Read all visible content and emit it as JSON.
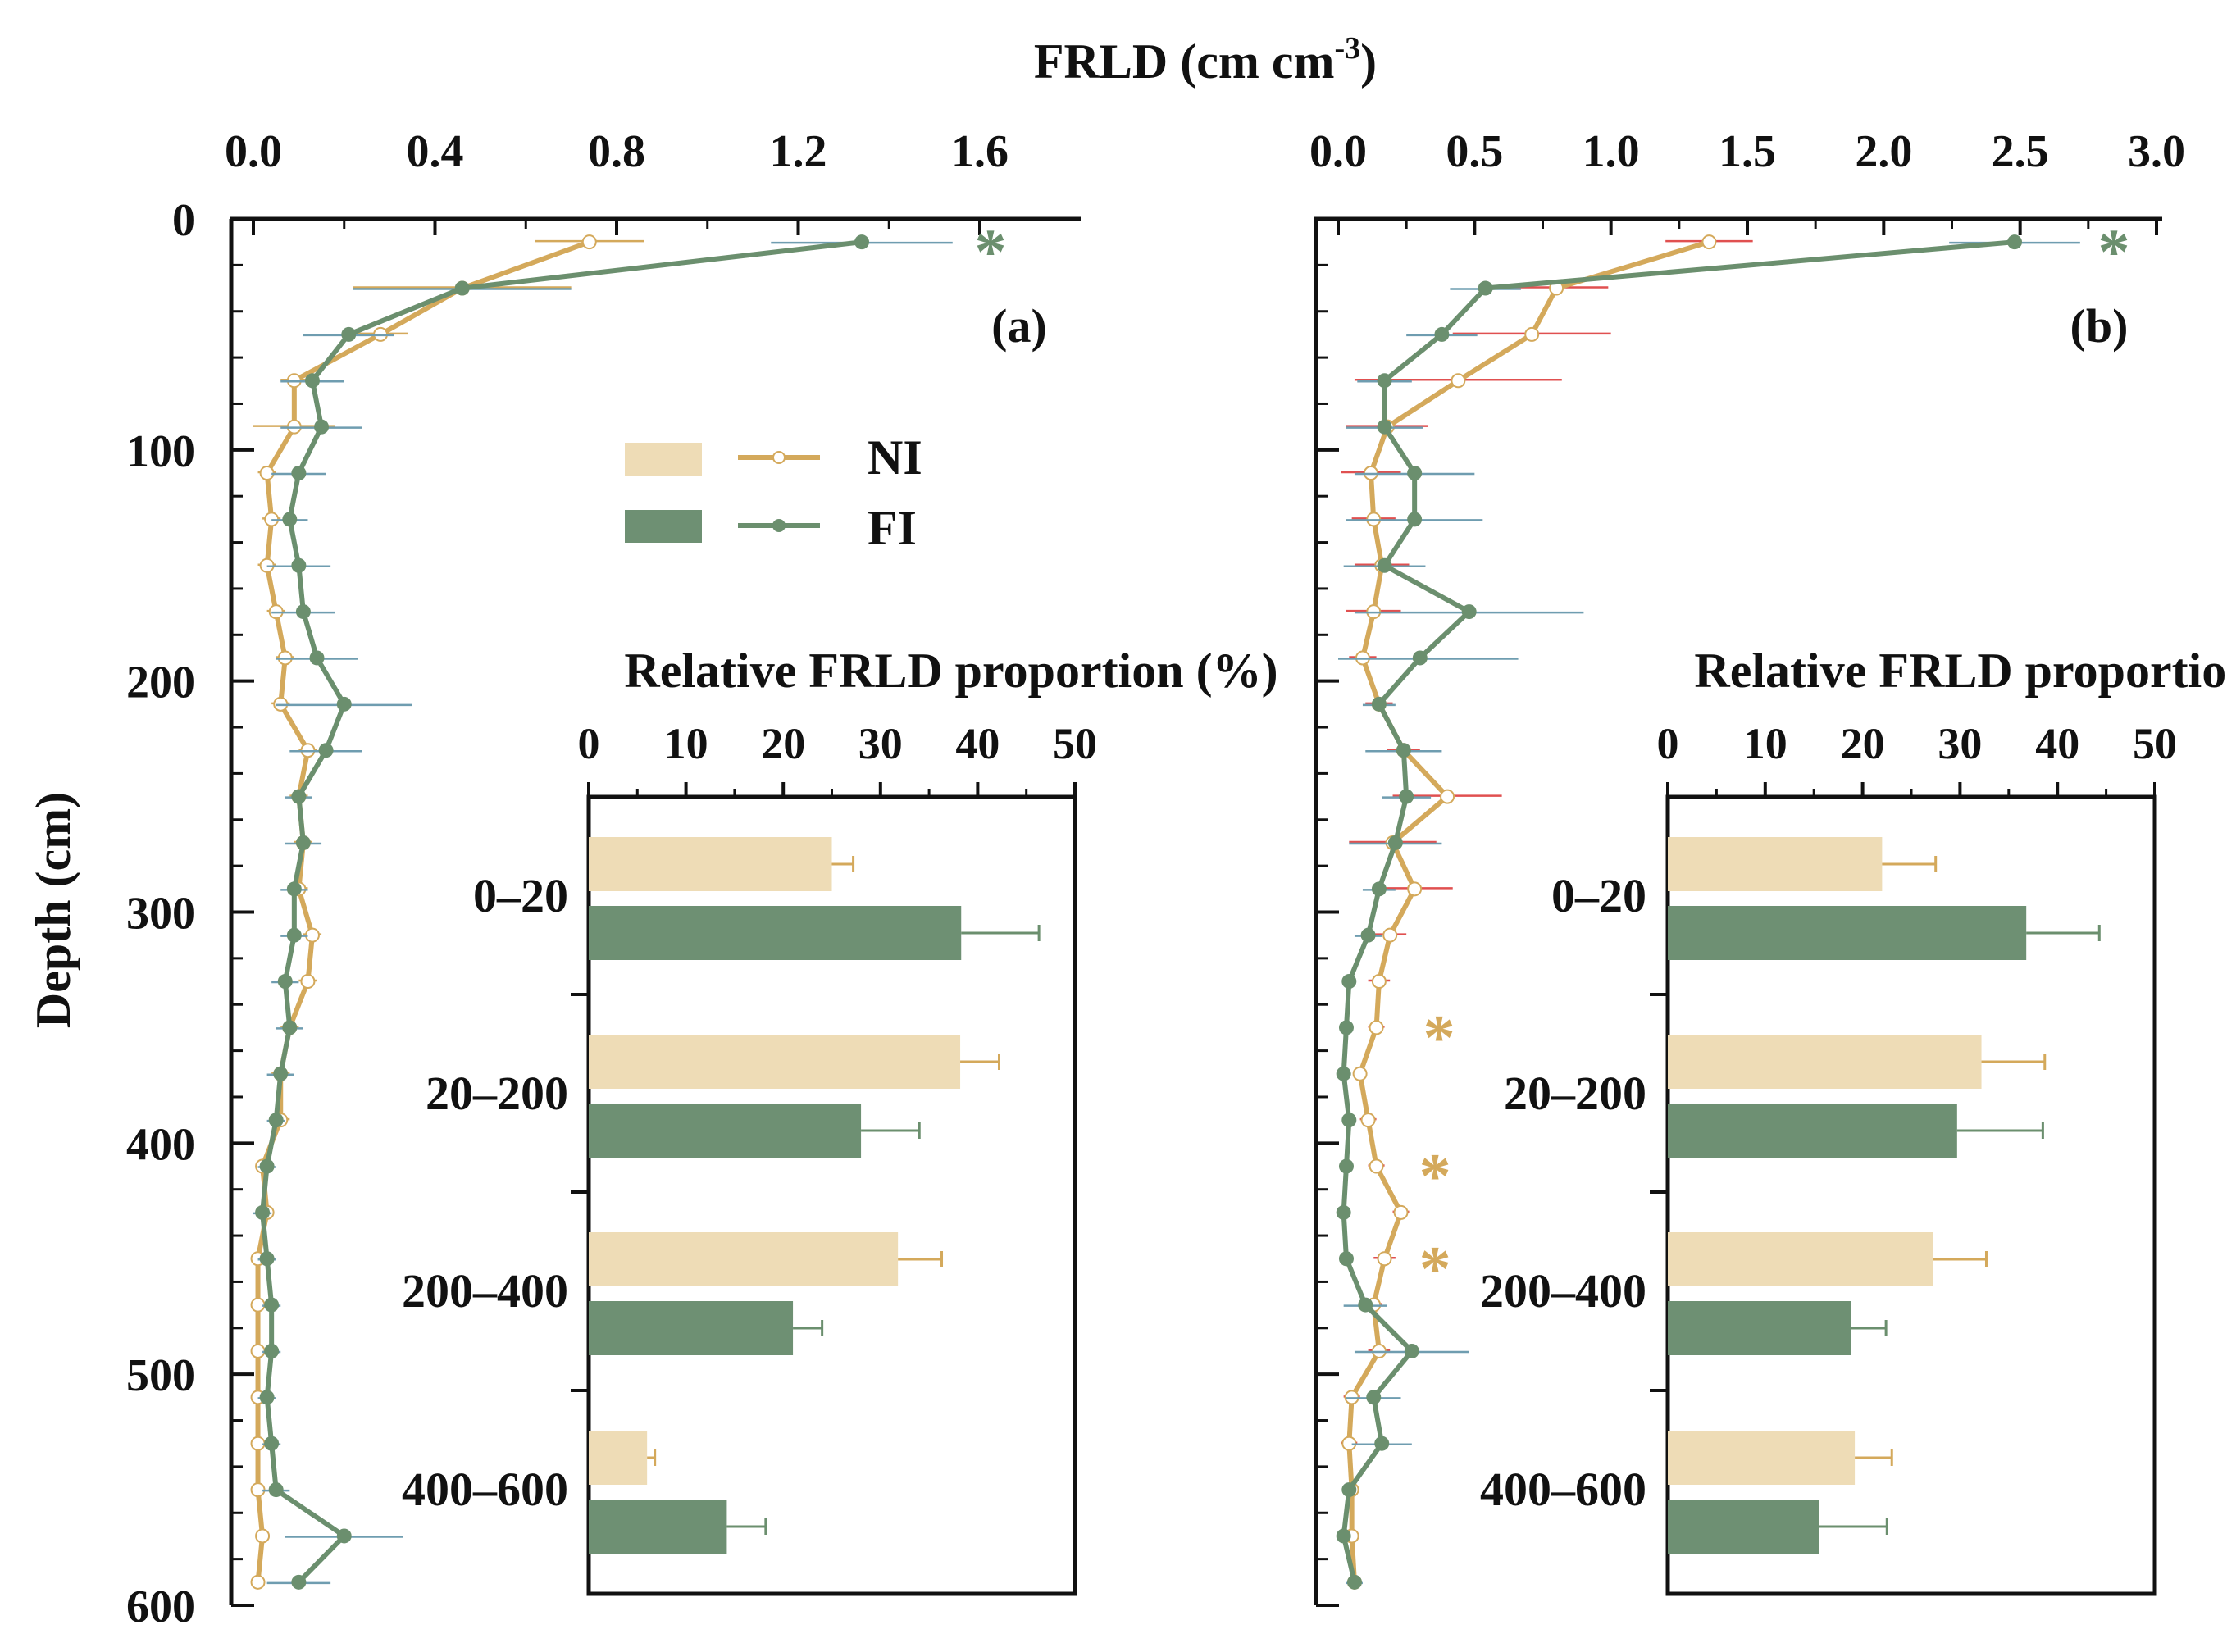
{
  "figure": {
    "x_title_main": "FRLD (cm cm",
    "x_title_sup": "-3",
    "x_title_close": ")",
    "y_title": "Depth (cm)"
  },
  "legend": {
    "items": [
      {
        "label": "NI",
        "color": "#e6cda0",
        "line_color": "#d4a95b"
      },
      {
        "label": "FI",
        "color": "#6e9073",
        "line_color": "#6b8f6e"
      }
    ]
  },
  "colors": {
    "ni_line": "#d4a95b",
    "ni_bar": "#eedcb6",
    "ni_err": "#d4a95b",
    "fi_line": "#6b8f6e",
    "fi_bar": "#6e9073",
    "fi_err": "#6f9db0",
    "ni_err_b": "#e05050",
    "axis": "#111111"
  },
  "chart_data": [
    {
      "type": "line",
      "panel_label": "(a)",
      "xlabel": "FRLD (cm cm-3)",
      "ylabel": "Depth (cm)",
      "xlim": [
        0,
        1.8
      ],
      "ylim": [
        600,
        0
      ],
      "x_ticks": [
        0.0,
        0.4,
        0.8,
        1.2,
        1.6
      ],
      "x_tick_labels": [
        "0.0",
        "0.4",
        "0.8",
        "1.2",
        "1.6"
      ],
      "y_ticks": [
        0,
        100,
        200,
        300,
        400,
        500,
        600
      ],
      "y_tick_labels": [
        "0",
        "100",
        "200",
        "300",
        "400",
        "500",
        "600"
      ],
      "depth": [
        10,
        30,
        50,
        70,
        90,
        110,
        130,
        150,
        170,
        190,
        210,
        230,
        250,
        270,
        290,
        310,
        330,
        350,
        370,
        390,
        410,
        430,
        450,
        470,
        490,
        510,
        530,
        550,
        570,
        590
      ],
      "series": [
        {
          "name": "NI",
          "values": [
            0.74,
            0.46,
            0.28,
            0.09,
            0.09,
            0.03,
            0.04,
            0.03,
            0.05,
            0.07,
            0.06,
            0.12,
            0.1,
            0.11,
            0.1,
            0.13,
            0.12,
            0.08,
            0.06,
            0.06,
            0.02,
            0.03,
            0.01,
            0.01,
            0.01,
            0.01,
            0.01,
            0.01,
            0.02,
            0.01
          ],
          "errors": [
            0.12,
            0.24,
            0.06,
            0.03,
            0.09,
            0.02,
            0.02,
            0.02,
            0.02,
            0.02,
            0.02,
            0.02,
            0.02,
            0.02,
            0.02,
            0.02,
            0.02,
            0.02,
            0.02,
            0.02,
            0.01,
            0.01,
            0.01,
            0.01,
            0.01,
            0.01,
            0.01,
            0.01,
            0.01,
            0.01
          ]
        },
        {
          "name": "FI",
          "values": [
            1.34,
            0.46,
            0.21,
            0.13,
            0.15,
            0.1,
            0.08,
            0.1,
            0.11,
            0.14,
            0.2,
            0.16,
            0.1,
            0.11,
            0.09,
            0.09,
            0.07,
            0.08,
            0.06,
            0.05,
            0.03,
            0.02,
            0.03,
            0.04,
            0.04,
            0.03,
            0.04,
            0.05,
            0.2,
            0.1
          ],
          "errors": [
            0.2,
            0.24,
            0.1,
            0.07,
            0.09,
            0.06,
            0.04,
            0.07,
            0.07,
            0.09,
            0.15,
            0.08,
            0.03,
            0.04,
            0.03,
            0.03,
            0.03,
            0.03,
            0.03,
            0.02,
            0.02,
            0.02,
            0.02,
            0.02,
            0.02,
            0.02,
            0.02,
            0.03,
            0.13,
            0.07
          ]
        }
      ],
      "significance": [
        {
          "depth": 10,
          "label": "*",
          "series": "FI"
        }
      ],
      "inset": {
        "type": "bar",
        "title": "Relative FRLD proportion (%)",
        "xlim": [
          0,
          50
        ],
        "x_ticks": [
          0,
          10,
          20,
          30,
          40,
          50
        ],
        "x_tick_labels": [
          "0",
          "10",
          "20",
          "30",
          "40",
          "50"
        ],
        "categories": [
          "0–20",
          "20–200",
          "200–400",
          "400–600"
        ],
        "series": [
          {
            "name": "NI",
            "values": [
              25,
              38.2,
              31.8,
              6
            ],
            "errors": [
              2.2,
              4,
              4.5,
              0.8
            ]
          },
          {
            "name": "FI",
            "values": [
              38.3,
              28,
              21,
              14.2
            ],
            "errors": [
              8,
              6,
              3,
              4
            ]
          }
        ]
      }
    },
    {
      "type": "line",
      "panel_label": "(b)",
      "xlabel": "FRLD (cm cm-3)",
      "ylabel": "Depth (cm)",
      "xlim": [
        0,
        3.0
      ],
      "ylim": [
        600,
        0
      ],
      "x_ticks": [
        0.0,
        0.5,
        1.0,
        1.5,
        2.0,
        2.5,
        3.0
      ],
      "x_tick_labels": [
        "0.0",
        "0.5",
        "1.0",
        "1.5",
        "2.0",
        "2.5",
        "3.0"
      ],
      "y_ticks": [
        0,
        100,
        200,
        300,
        400,
        500,
        600
      ],
      "depth": [
        10,
        30,
        50,
        70,
        90,
        110,
        130,
        150,
        170,
        190,
        210,
        230,
        250,
        270,
        290,
        310,
        330,
        350,
        370,
        390,
        410,
        430,
        450,
        470,
        490,
        510,
        530,
        550,
        570,
        590
      ],
      "series": [
        {
          "name": "NI",
          "values": [
            1.36,
            0.8,
            0.71,
            0.44,
            0.18,
            0.12,
            0.13,
            0.16,
            0.13,
            0.09,
            0.15,
            0.24,
            0.4,
            0.2,
            0.28,
            0.19,
            0.15,
            0.14,
            0.08,
            0.11,
            0.14,
            0.23,
            0.17,
            0.13,
            0.15,
            0.05,
            0.04,
            0.05,
            0.05,
            0.06
          ],
          "errors": [
            0.16,
            0.19,
            0.29,
            0.38,
            0.15,
            0.11,
            0.08,
            0.1,
            0.1,
            0.05,
            0.05,
            0.06,
            0.2,
            0.16,
            0.14,
            0.06,
            0.04,
            0.03,
            0.02,
            0.03,
            0.03,
            0.03,
            0.04,
            0.03,
            0.04,
            0.03,
            0.03,
            0.02,
            0.02,
            0.02
          ]
        },
        {
          "name": "FI",
          "values": [
            2.48,
            0.54,
            0.38,
            0.17,
            0.17,
            0.28,
            0.28,
            0.17,
            0.48,
            0.3,
            0.15,
            0.24,
            0.25,
            0.21,
            0.15,
            0.11,
            0.04,
            0.03,
            0.02,
            0.04,
            0.03,
            0.02,
            0.03,
            0.1,
            0.27,
            0.13,
            0.16,
            0.04,
            0.02,
            0.06
          ],
          "errors": [
            0.24,
            0.13,
            0.13,
            0.1,
            0.14,
            0.22,
            0.25,
            0.15,
            0.42,
            0.36,
            0.06,
            0.14,
            0.09,
            0.17,
            0.06,
            0.05,
            0.02,
            0.02,
            0.02,
            0.02,
            0.02,
            0.02,
            0.02,
            0.08,
            0.21,
            0.1,
            0.11,
            0.02,
            0.02,
            0.03
          ]
        }
      ],
      "significance": [
        {
          "depth": 10,
          "label": "*",
          "series": "FI"
        },
        {
          "depth": 350,
          "label": "*",
          "series": "NI"
        },
        {
          "depth": 410,
          "label": "*",
          "series": "NI"
        },
        {
          "depth": 450,
          "label": "*",
          "series": "NI"
        }
      ],
      "inset": {
        "type": "bar",
        "title": "Relative FRLD proportion (%)",
        "xlim": [
          0,
          50
        ],
        "x_ticks": [
          0,
          10,
          20,
          30,
          40,
          50
        ],
        "x_tick_labels": [
          "0",
          "10",
          "20",
          "30",
          "40",
          "50"
        ],
        "categories": [
          "0–20",
          "20–200",
          "200–400",
          "400–600"
        ],
        "series": [
          {
            "name": "NI",
            "values": [
              22,
              32.2,
              27.2,
              19.2
            ],
            "errors": [
              5.5,
              6.5,
              5.5,
              3.8
            ]
          },
          {
            "name": "FI",
            "values": [
              36.8,
              29.7,
              18.8,
              15.5
            ],
            "errors": [
              7.5,
              8.8,
              3.6,
              7
            ]
          }
        ]
      }
    }
  ]
}
